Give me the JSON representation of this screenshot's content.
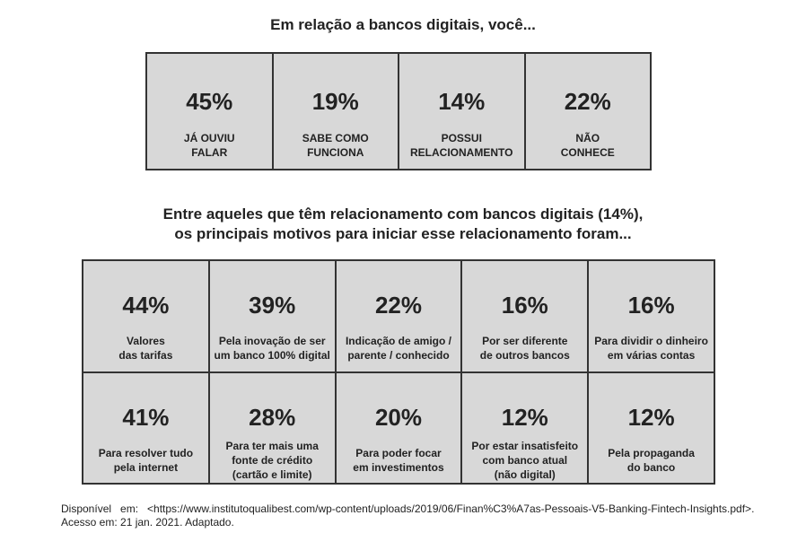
{
  "title": "Em relação a bancos digitais, você...",
  "awareness": [
    {
      "value": "45%",
      "label": "JÁ OUVIU\nFALAR"
    },
    {
      "value": "19%",
      "label": "SABE COMO\nFUNCIONA"
    },
    {
      "value": "14%",
      "label": "POSSUI\nRELACIONAMENTO"
    },
    {
      "value": "22%",
      "label": "NÃO\nCONHECE"
    }
  ],
  "subtitle": [
    "Entre aqueles que têm relacionamento com bancos digitais (14%),",
    "os principais motivos para iniciar esse relacionamento foram..."
  ],
  "reasons": [
    {
      "value": "44%",
      "label": "Valores\ndas tarifas"
    },
    {
      "value": "39%",
      "label": "Pela inovação de ser\num banco 100% digital"
    },
    {
      "value": "22%",
      "label": "Indicação de amigo /\nparente / conhecido"
    },
    {
      "value": "16%",
      "label": "Por ser diferente\nde outros bancos"
    },
    {
      "value": "16%",
      "label": "Para dividir o dinheiro\nem várias contas"
    },
    {
      "value": "41%",
      "label": "Para resolver tudo\npela internet"
    },
    {
      "value": "28%",
      "label": "Para ter mais uma\nfonte de crédito\n(cartão e limite)"
    },
    {
      "value": "20%",
      "label": "Para poder focar\nem investimentos"
    },
    {
      "value": "12%",
      "label": "Por estar insatisfeito\ncom banco atual\n(não digital)"
    },
    {
      "value": "12%",
      "label": "Pela propaganda\ndo banco"
    }
  ],
  "source": [
    "Disponível   em:   <https://www.institutoqualibest.com/wp-content/uploads/2019/06/Finan%C3%A7as-Pessoais-V5-Banking-Fintech-Insights.pdf>.",
    "Acesso em: 21 jan. 2021. Adaptado."
  ]
}
